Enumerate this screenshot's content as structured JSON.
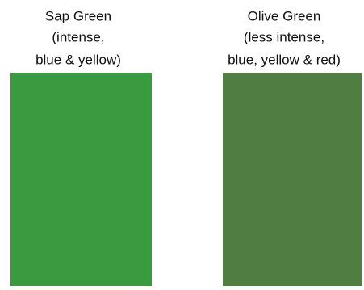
{
  "swatches": [
    {
      "label_lines": [
        "Sap Green",
        "(intense,",
        "blue & yellow)"
      ],
      "color": "#3a9a3f"
    },
    {
      "label_lines": [
        "Olive Green",
        "(less intense,",
        "blue, yellow & red)"
      ],
      "color": "#4f7e40"
    }
  ]
}
